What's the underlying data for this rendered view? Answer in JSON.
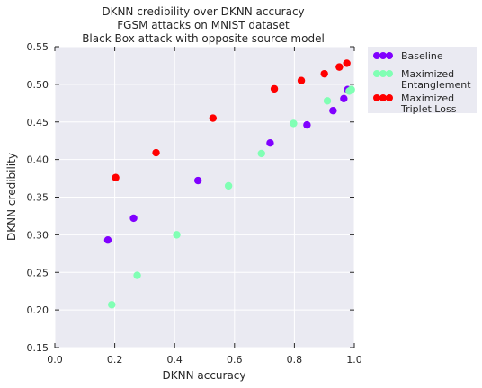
{
  "chart_data": {
    "type": "scatter",
    "title_lines": [
      "DKNN credibility over DKNN accuracy",
      "FGSM attacks on MNIST dataset",
      "Black Box attack with opposite source model"
    ],
    "xlabel": "DKNN accuracy",
    "ylabel": "DKNN credibility",
    "xlim": [
      0.0,
      1.0
    ],
    "ylim": [
      0.15,
      0.55
    ],
    "xticks": [
      0.0,
      0.2,
      0.4,
      0.6,
      0.8,
      1.0
    ],
    "xtick_labels": [
      "0.0",
      "0.2",
      "0.4",
      "0.6",
      "0.8",
      "1.0"
    ],
    "yticks": [
      0.15,
      0.2,
      0.25,
      0.3,
      0.35,
      0.4,
      0.45,
      0.5,
      0.55
    ],
    "ytick_labels": [
      "0.15",
      "0.20",
      "0.25",
      "0.30",
      "0.35",
      "0.40",
      "0.45",
      "0.50",
      "0.55"
    ],
    "grid": true,
    "legend_position": "outside-right",
    "series": [
      {
        "name": "Baseline",
        "color": "#8000ff",
        "points": [
          [
            0.177,
            0.293
          ],
          [
            0.263,
            0.322
          ],
          [
            0.478,
            0.372
          ],
          [
            0.719,
            0.422
          ],
          [
            0.842,
            0.446
          ],
          [
            0.929,
            0.465
          ],
          [
            0.965,
            0.481
          ],
          [
            0.978,
            0.493
          ]
        ]
      },
      {
        "name": "Maximized\nEntanglement",
        "color": "#80ffb4",
        "points": [
          [
            0.19,
            0.207
          ],
          [
            0.275,
            0.246
          ],
          [
            0.407,
            0.3
          ],
          [
            0.58,
            0.365
          ],
          [
            0.69,
            0.408
          ],
          [
            0.797,
            0.448
          ],
          [
            0.91,
            0.478
          ],
          [
            0.983,
            0.491
          ],
          [
            0.99,
            0.493
          ]
        ]
      },
      {
        "name": "Maximized\nTriplet Loss",
        "color": "#ff0000",
        "points": [
          [
            0.203,
            0.376
          ],
          [
            0.338,
            0.409
          ],
          [
            0.528,
            0.455
          ],
          [
            0.733,
            0.494
          ],
          [
            0.823,
            0.505
          ],
          [
            0.9,
            0.514
          ],
          [
            0.95,
            0.523
          ],
          [
            0.975,
            0.528
          ]
        ]
      }
    ]
  }
}
